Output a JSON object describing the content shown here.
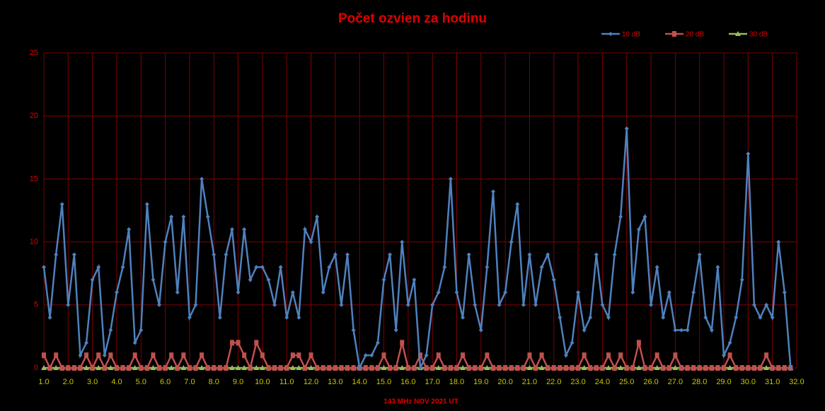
{
  "chart_data": {
    "type": "line",
    "title": "Počet ozvien za hodinu",
    "x_label": "143 MHz NOV 2021 UT",
    "x": [
      1,
      1.25,
      1.5,
      1.75,
      2,
      2.25,
      2.5,
      2.75,
      3,
      3.25,
      3.5,
      3.75,
      4,
      4.25,
      4.5,
      4.75,
      5,
      5.25,
      5.5,
      5.75,
      6,
      6.25,
      6.5,
      6.75,
      7,
      7.25,
      7.5,
      7.75,
      8,
      8.25,
      8.5,
      8.75,
      9,
      9.25,
      9.5,
      9.75,
      10,
      10.25,
      10.5,
      10.75,
      11,
      11.25,
      11.5,
      11.75,
      12,
      12.25,
      12.5,
      12.75,
      13,
      13.25,
      13.5,
      13.75,
      14,
      14.25,
      14.5,
      14.75,
      15,
      15.25,
      15.5,
      15.75,
      16,
      16.25,
      16.5,
      16.75,
      17,
      17.25,
      17.5,
      17.75,
      18,
      18.25,
      18.5,
      18.75,
      19,
      19.25,
      19.5,
      19.75,
      20,
      20.25,
      20.5,
      20.75,
      21,
      21.25,
      21.5,
      21.75,
      22,
      22.25,
      22.5,
      22.75,
      23,
      23.25,
      23.5,
      23.75,
      24,
      24.25,
      24.5,
      24.75,
      25,
      25.25,
      25.5,
      25.75,
      26,
      26.25,
      26.5,
      26.75,
      27,
      27.25,
      27.5,
      27.75,
      28,
      28.25,
      28.5,
      28.75,
      29,
      29.25,
      29.5,
      29.75,
      30,
      30.25,
      30.5,
      30.75,
      31,
      31.25,
      31.5,
      31.75
    ],
    "series": [
      {
        "name": "10 dB",
        "color": "#4f81bd",
        "marker": "diamond",
        "values": [
          8,
          4,
          9,
          13,
          5,
          9,
          1,
          2,
          7,
          8,
          1,
          3,
          6,
          8,
          11,
          2,
          3,
          13,
          7,
          5,
          10,
          12,
          6,
          12,
          4,
          5,
          15,
          12,
          9,
          4,
          9,
          11,
          6,
          11,
          7,
          8,
          8,
          7,
          5,
          8,
          4,
          6,
          4,
          11,
          10,
          12,
          6,
          8,
          9,
          5,
          9,
          3,
          0,
          1,
          1,
          2,
          7,
          9,
          3,
          10,
          5,
          7,
          0,
          1,
          5,
          6,
          8,
          15,
          6,
          4,
          9,
          5,
          3,
          8,
          14,
          5,
          6,
          10,
          13,
          5,
          9,
          5,
          8,
          9,
          7,
          4,
          1,
          2,
          6,
          3,
          4,
          9,
          5,
          4,
          9,
          12,
          19,
          6,
          11,
          12,
          5,
          8,
          4,
          6,
          3,
          3,
          3,
          6,
          9,
          4,
          3,
          8,
          1,
          2,
          4,
          7,
          17,
          5,
          4,
          5,
          4,
          10,
          6,
          0
        ]
      },
      {
        "name": "20 dB",
        "color": "#c0504d",
        "marker": "square",
        "values": [
          1,
          0,
          1,
          0,
          0,
          0,
          0,
          1,
          0,
          1,
          0,
          1,
          0,
          0,
          0,
          1,
          0,
          0,
          1,
          0,
          0,
          1,
          0,
          1,
          0,
          0,
          1,
          0,
          0,
          0,
          0,
          2,
          2,
          1,
          0,
          2,
          1,
          0,
          0,
          0,
          0,
          1,
          1,
          0,
          1,
          0,
          0,
          0,
          0,
          0,
          0,
          0,
          0,
          0,
          0,
          0,
          1,
          0,
          0,
          2,
          0,
          0,
          1,
          0,
          0,
          1,
          0,
          0,
          0,
          1,
          0,
          0,
          0,
          1,
          0,
          0,
          0,
          0,
          0,
          0,
          1,
          0,
          1,
          0,
          0,
          0,
          0,
          0,
          0,
          1,
          0,
          0,
          0,
          1,
          0,
          1,
          0,
          0,
          2,
          0,
          0,
          1,
          0,
          0,
          1,
          0,
          0,
          0,
          0,
          0,
          0,
          0,
          0,
          1,
          0,
          0,
          0,
          0,
          0,
          1,
          0,
          0,
          0,
          0
        ]
      },
      {
        "name": "30 dB",
        "color": "#9bbb59",
        "marker": "triangle",
        "values": [
          0,
          0,
          0,
          0,
          0,
          0,
          0,
          0,
          0,
          0,
          0,
          0,
          0,
          0,
          0,
          0,
          0,
          0,
          0,
          0,
          0,
          0,
          0,
          0,
          0,
          0,
          0,
          0,
          0,
          0,
          0,
          0,
          0,
          0,
          0,
          0,
          0,
          0,
          0,
          0,
          0,
          0,
          0,
          0,
          0,
          0,
          0,
          0,
          0,
          0,
          0,
          0,
          0,
          0,
          0,
          0,
          0,
          0,
          0,
          0,
          0,
          0,
          0,
          0,
          0,
          0,
          0,
          0,
          0,
          0,
          0,
          0,
          0,
          0,
          0,
          0,
          0,
          0,
          0,
          0,
          0,
          0,
          0,
          0,
          0,
          0,
          0,
          0,
          0,
          0,
          0,
          0,
          0,
          0,
          0,
          0,
          0,
          0,
          0,
          0,
          0,
          0,
          0,
          0,
          0,
          0,
          0,
          0,
          0,
          0,
          0,
          0,
          0,
          0,
          0,
          0,
          0,
          0,
          0,
          0,
          0,
          0,
          0,
          0
        ]
      }
    ],
    "xlim": [
      1,
      32
    ],
    "ylim": [
      0,
      25
    ],
    "xticks": [
      {
        "value": 1,
        "label": "1.0"
      },
      {
        "value": 2,
        "label": "2.0"
      },
      {
        "value": 3,
        "label": "3.0"
      },
      {
        "value": 4,
        "label": "4.0"
      },
      {
        "value": 5,
        "label": "5.0"
      },
      {
        "value": 6,
        "label": "6.0"
      },
      {
        "value": 7,
        "label": "7.0"
      },
      {
        "value": 8,
        "label": "8.0"
      },
      {
        "value": 9,
        "label": "9.0"
      },
      {
        "value": 10,
        "label": "10.0"
      },
      {
        "value": 11,
        "label": "11.0"
      },
      {
        "value": 12,
        "label": "12.0"
      },
      {
        "value": 13,
        "label": "13.0"
      },
      {
        "value": 14,
        "label": "14.0"
      },
      {
        "value": 15,
        "label": "15.0"
      },
      {
        "value": 16,
        "label": "16.0"
      },
      {
        "value": 17,
        "label": "17.0"
      },
      {
        "value": 18,
        "label": "18.0"
      },
      {
        "value": 19,
        "label": "19.0"
      },
      {
        "value": 20,
        "label": "20.0"
      },
      {
        "value": 21,
        "label": "21.0"
      },
      {
        "value": 22,
        "label": "22.0"
      },
      {
        "value": 23,
        "label": "23.0"
      },
      {
        "value": 24,
        "label": "24.0"
      },
      {
        "value": 25,
        "label": "25.0"
      },
      {
        "value": 26,
        "label": "26.0"
      },
      {
        "value": 27,
        "label": "27.0"
      },
      {
        "value": 28,
        "label": "28.0"
      },
      {
        "value": 29,
        "label": "29.0"
      },
      {
        "value": 30,
        "label": "30.0"
      },
      {
        "value": 31,
        "label": "31.0"
      },
      {
        "value": 32,
        "label": "32.0"
      }
    ],
    "yticks": [
      0,
      5,
      10,
      15,
      20,
      25
    ],
    "grid": true,
    "legend": "top-right"
  }
}
